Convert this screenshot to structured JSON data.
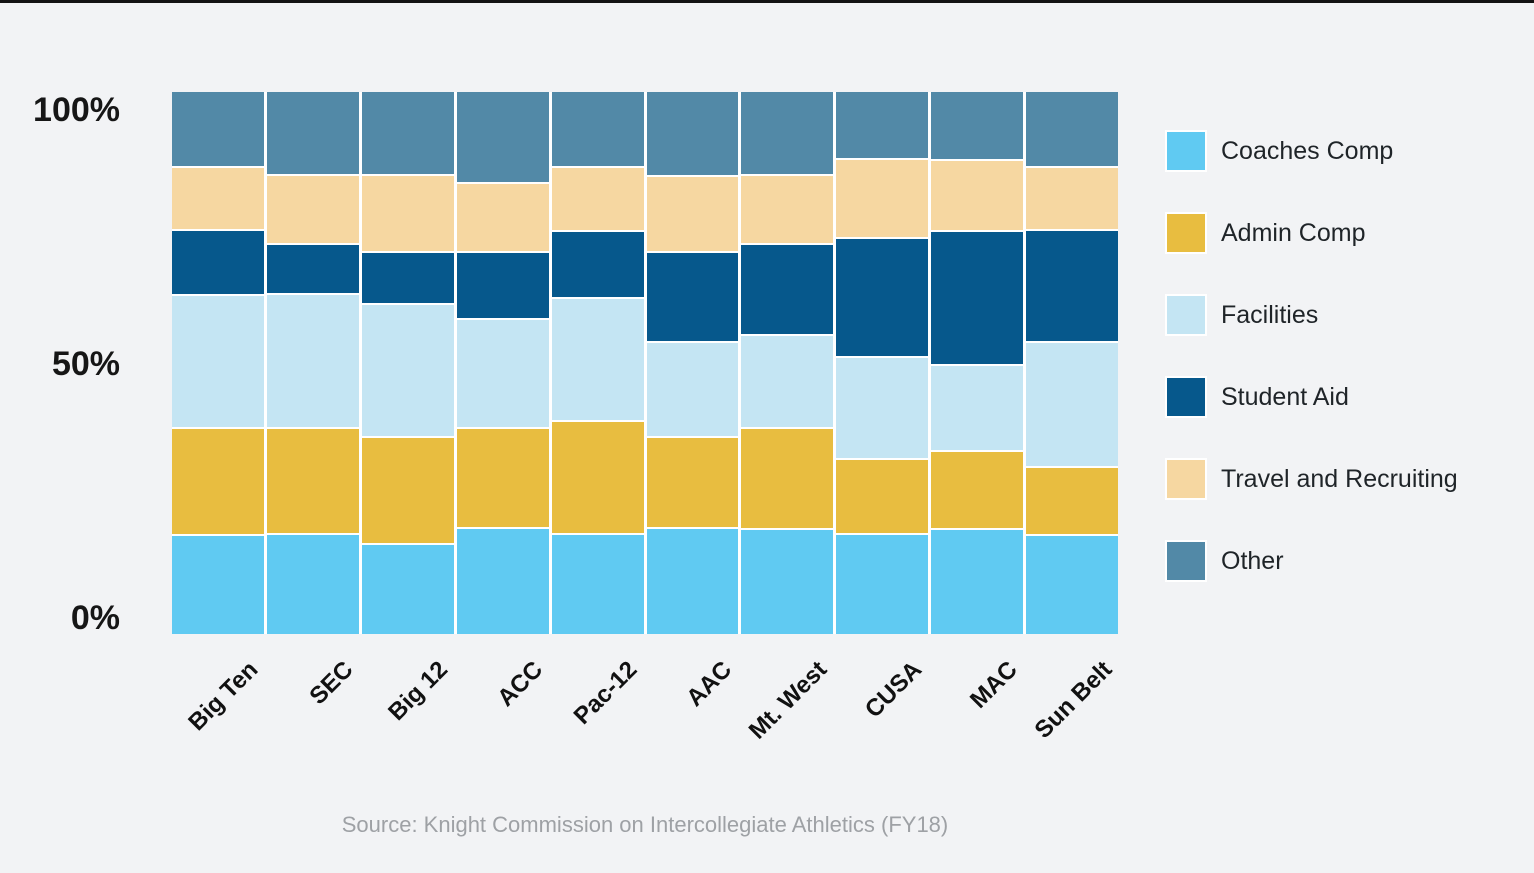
{
  "chart_data": {
    "type": "bar",
    "stacked": true,
    "percent": true,
    "title": "",
    "xlabel": "",
    "ylabel": "",
    "ylim": [
      0,
      100
    ],
    "grid": false,
    "legend_position": "right",
    "yticks": {
      "t100": "100%",
      "t50": "50%",
      "t0": "0%"
    },
    "categories": [
      "Big Ten",
      "SEC",
      "Big 12",
      "ACC",
      "Pac-12",
      "AAC",
      "Mt. West",
      "CUSA",
      "MAC",
      "Sun Belt"
    ],
    "series": [
      {
        "name": "Coaches Comp",
        "color": "#60CAF2",
        "values": [
          18.5,
          18.6,
          16.8,
          19.7,
          18.6,
          19.7,
          19.6,
          18.6,
          19.6,
          18.5
        ]
      },
      {
        "name": "Admin Comp",
        "color": "#E8BD40",
        "values": [
          19.7,
          19.6,
          19.7,
          18.5,
          20.8,
          16.8,
          18.5,
          13.7,
          14.2,
          12.4
        ]
      },
      {
        "name": "Facilities",
        "color": "#C4E5F3",
        "values": [
          24.5,
          24.7,
          24.5,
          20.1,
          22.9,
          17.5,
          17.2,
          18.8,
          15.9,
          23.1
        ]
      },
      {
        "name": "Student Aid",
        "color": "#06588C",
        "values": [
          12.0,
          9.0,
          9.4,
          12.2,
          12.2,
          16.4,
          16.6,
          22.1,
          24.7,
          20.7
        ]
      },
      {
        "name": "Travel and Recruiting",
        "color": "#F6D7A1",
        "values": [
          11.4,
          12.7,
          14.2,
          12.5,
          11.6,
          14.0,
          12.7,
          14.4,
          13.1,
          11.3
        ]
      },
      {
        "name": "Other",
        "color": "#5289A7",
        "values": [
          13.9,
          15.4,
          15.4,
          17.0,
          13.9,
          15.6,
          15.4,
          12.4,
          12.5,
          14.0
        ]
      }
    ],
    "source": "Source: Knight Commission on Intercollegiate Athletics (FY18)"
  },
  "colors": {
    "background": "#f2f3f5",
    "top_strip": "#131313",
    "axis_text": "#161616",
    "legend_text": "#1f2428",
    "source_text": "#9ea1a5",
    "bar_gap": "#ffffff"
  }
}
